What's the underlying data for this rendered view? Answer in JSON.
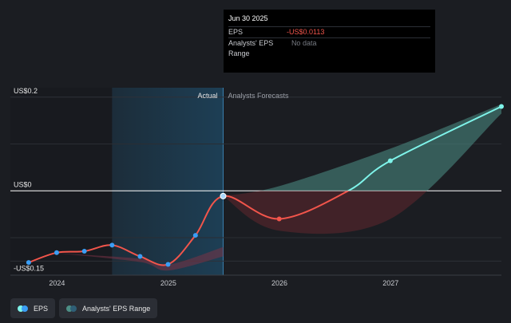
{
  "chart_data": {
    "type": "line",
    "ylim": [
      -0.18,
      0.22
    ],
    "y_tick_labels": [
      "US$0.2",
      "US$0",
      "-US$0.15"
    ],
    "y_tick_values": [
      0.2,
      0,
      -0.15
    ],
    "x_tick_labels": [
      "2024",
      "2025",
      "2026",
      "2027"
    ],
    "x_tick_values": [
      "2024-01-01",
      "2025-01-01",
      "2026-01-01",
      "2027-01-01"
    ],
    "xlim": [
      "2023-08-01",
      "2027-12-31"
    ],
    "region_labels": {
      "actual": "Actual",
      "forecast": "Analysts Forecasts"
    },
    "series": [
      {
        "name": "EPS",
        "actual_points": [
          [
            "2023-09-30",
            -0.153
          ],
          [
            "2023-12-31",
            -0.132
          ],
          [
            "2024-03-31",
            -0.129
          ],
          [
            "2024-06-30",
            -0.116
          ],
          [
            "2024-09-30",
            -0.14
          ],
          [
            "2024-12-31",
            -0.157
          ],
          [
            "2025-03-31",
            -0.095
          ],
          [
            "2025-06-30",
            -0.0113
          ]
        ],
        "forecast_points": [
          [
            "2025-12-31",
            -0.06
          ],
          [
            "2026-08-15",
            0.0
          ],
          [
            "2026-12-31",
            0.064
          ],
          [
            "2027-12-31",
            0.18
          ]
        ]
      }
    ],
    "range_band": {
      "name": "Analysts' EPS Range",
      "upper": [
        [
          "2025-06-30",
          -0.0113
        ],
        [
          "2025-12-31",
          0.01
        ],
        [
          "2026-12-31",
          0.09
        ],
        [
          "2027-12-31",
          0.185
        ]
      ],
      "lower": [
        [
          "2025-06-30",
          -0.0113
        ],
        [
          "2025-12-31",
          -0.085
        ],
        [
          "2026-12-31",
          -0.06
        ],
        [
          "2027-12-31",
          0.165
        ]
      ]
    },
    "grid": true,
    "legend_position": "bottom-left"
  },
  "tooltip": {
    "date": "Jun 30 2025",
    "rows": [
      {
        "label": "EPS",
        "value": "-US$0.0113"
      },
      {
        "label": "Analysts' EPS Range",
        "value": "No data"
      }
    ]
  },
  "legend": {
    "items": [
      {
        "label": "EPS"
      },
      {
        "label": "Analysts' EPS Range"
      }
    ]
  },
  "colors": {
    "negative": "#f2554b",
    "positive": "#7ff4ea",
    "point_blue": "#3b9ef5",
    "forecast_band": "#4d8f86"
  }
}
